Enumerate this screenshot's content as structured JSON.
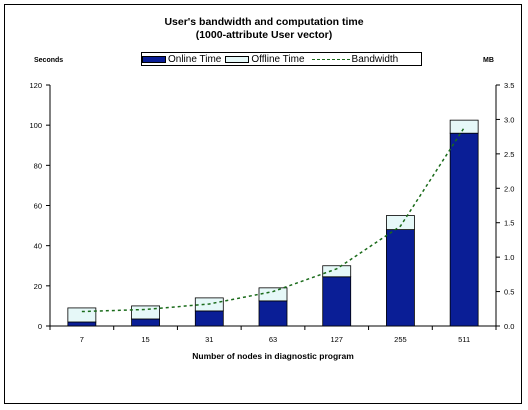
{
  "chart_data": {
    "type": "bar",
    "title": "User's bandwidth and computation time",
    "subtitle": "(1000-attribute User vector)",
    "xlabel": "Number of nodes in diagnostic program",
    "ylabel": "Seconds",
    "y2label": "MB",
    "categories": [
      "7",
      "15",
      "31",
      "63",
      "127",
      "255",
      "511"
    ],
    "ylim": [
      0,
      120
    ],
    "y_ticks": [
      "0",
      "20",
      "40",
      "60",
      "80",
      "100",
      "120"
    ],
    "y2lim": [
      0,
      3.5
    ],
    "y2_ticks": [
      "0.0",
      "0.5",
      "1.0",
      "1.5",
      "2.0",
      "2.5",
      "3.0",
      "3.5"
    ],
    "legend_position": "top-center",
    "series": [
      {
        "name": "Online Time",
        "kind": "stacked-bar",
        "axis": "left",
        "color": "#0a1e96",
        "values": [
          2,
          3.5,
          7.5,
          12.5,
          24.5,
          48,
          96
        ]
      },
      {
        "name": "Offline Time",
        "kind": "stacked-bar",
        "axis": "left",
        "color": "#e6f8f8",
        "values": [
          7,
          6.5,
          6.5,
          6.5,
          5.5,
          7,
          6.5
        ]
      },
      {
        "name": "Bandwidth",
        "kind": "line",
        "axis": "right",
        "style": "dashed",
        "color": "#1a6b1a",
        "values": [
          0.21,
          0.24,
          0.32,
          0.5,
          0.83,
          1.45,
          2.88
        ]
      }
    ],
    "grid": false
  }
}
